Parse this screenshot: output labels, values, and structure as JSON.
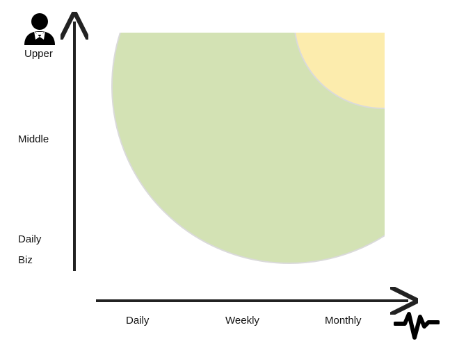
{
  "y_axis": {
    "labels": {
      "upper": "Upper",
      "middle": "Middle",
      "daily": "Daily",
      "biz": "Biz"
    },
    "icon": "person-icon"
  },
  "x_axis": {
    "labels": {
      "daily": "Daily",
      "weekly": "Weekly",
      "monthly": "Monthly"
    },
    "icon": "pulse-icon"
  },
  "shapes": {
    "large_circle_color": "#d3e2b4",
    "small_circle_color": "#fcecad",
    "circle_border_color": "#dadada"
  },
  "colors": {
    "axis": "#222222",
    "text": "#111111"
  }
}
